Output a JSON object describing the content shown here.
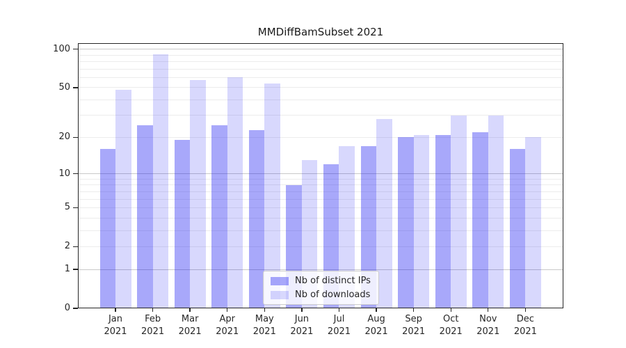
{
  "title": "MMDiffBamSubset 2021",
  "chart_data": {
    "type": "bar",
    "title": "MMDiffBamSubset 2021",
    "categories": [
      "Jan 2021",
      "Feb 2021",
      "Mar 2021",
      "Apr 2021",
      "May 2021",
      "Jun 2021",
      "Jul 2021",
      "Aug 2021",
      "Sep 2021",
      "Oct 2021",
      "Nov 2021",
      "Dec 2021"
    ],
    "series": [
      {
        "name": "Nb of distinct IPs",
        "color": "rgba(13,13,242,0.36)",
        "values": [
          16,
          25,
          19,
          25,
          23,
          8,
          12,
          17,
          20,
          21,
          22,
          16
        ]
      },
      {
        "name": "Nb of downloads",
        "color": "rgba(13,13,242,0.16)",
        "values": [
          48,
          91,
          57,
          60,
          54,
          13,
          17,
          28,
          21,
          30,
          30,
          20
        ]
      }
    ],
    "xlabel": "",
    "ylabel": "",
    "yscale": "log1p",
    "yticks": [
      0,
      1,
      2,
      5,
      10,
      20,
      50,
      100
    ],
    "ylim": [
      0,
      111.5
    ],
    "grid": {
      "on": true,
      "minor_values": [
        2,
        3,
        4,
        5,
        6,
        7,
        8,
        9,
        20,
        30,
        40,
        50,
        60,
        70,
        80,
        90
      ],
      "major_values": [
        1,
        10,
        100
      ],
      "minor_color": "#ececec",
      "major_color": "#c9c9c9"
    },
    "legend_position": "lower center"
  },
  "colors": {
    "spine": "#262626",
    "text": "#262626",
    "background": "#ffffff",
    "legend_border": "#cccccc"
  }
}
